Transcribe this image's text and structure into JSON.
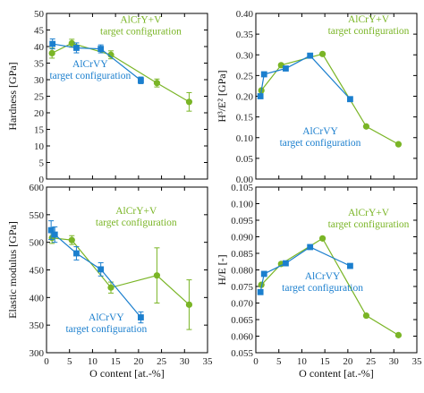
{
  "colors": {
    "alcryv": "#7ab526",
    "alcrvy": "#1b7fce",
    "axis": "#000000"
  },
  "chart_data": [
    {
      "type": "scatter",
      "panel": "hardness",
      "xlabel": "",
      "ylabel": "Hardness [GPa]",
      "xlim": [
        0,
        35
      ],
      "ylim": [
        0,
        50
      ],
      "xticks": [
        "0",
        "5",
        "10",
        "15",
        "20",
        "25",
        "30",
        "35"
      ],
      "yticks": [
        "0",
        "5",
        "10",
        "15",
        "20",
        "25",
        "30",
        "35",
        "40",
        "45",
        "50"
      ],
      "show_xtick_labels": false,
      "annotations": [
        {
          "text": "AlCrY+V",
          "series": 0,
          "line": 0,
          "x": 20.5,
          "y": 47.2
        },
        {
          "text": "target configuration",
          "series": 0,
          "line": 1,
          "x": 20.5,
          "y": 43.7
        },
        {
          "text": "AlCrVY",
          "series": 1,
          "line": 0,
          "x": 9.5,
          "y": 33.8
        },
        {
          "text": "target configuration",
          "series": 1,
          "line": 1,
          "x": 9.5,
          "y": 30.3
        }
      ],
      "series": [
        {
          "color": "alcryv",
          "marker": "circle",
          "x": [
            1.2,
            5.5,
            14.0,
            24.0,
            31.0
          ],
          "y": [
            38.0,
            41.0,
            37.5,
            29.0,
            23.3
          ],
          "err": [
            1.5,
            1.2,
            1.2,
            1.2,
            2.8
          ]
        },
        {
          "color": "alcrvy",
          "marker": "square",
          "x": [
            1.3,
            6.5,
            11.8,
            20.5
          ],
          "y": [
            40.8,
            39.6,
            39.3,
            29.8
          ],
          "err": [
            1.5,
            1.5,
            1.2,
            1.0
          ]
        }
      ]
    },
    {
      "type": "scatter",
      "panel": "h3e2",
      "xlabel": "",
      "ylabel": "H³/E² [GPa]",
      "xlim": [
        0,
        35
      ],
      "ylim": [
        0,
        0.4
      ],
      "xticks": [
        "0",
        "5",
        "10",
        "15",
        "20",
        "25",
        "30",
        "35"
      ],
      "yticks": [
        "0.00",
        "0.05",
        "0.10",
        "0.15",
        "0.20",
        "0.25",
        "0.30",
        "0.35",
        "0.40"
      ],
      "show_xtick_labels": false,
      "annotations": [
        {
          "text": "AlCrY+V",
          "series": 0,
          "line": 0,
          "x": 24.5,
          "y": 0.378
        },
        {
          "text": "target configuration",
          "series": 0,
          "line": 1,
          "x": 24.5,
          "y": 0.35
        },
        {
          "text": "AlCrVY",
          "series": 1,
          "line": 0,
          "x": 14.0,
          "y": 0.108
        },
        {
          "text": "target configuration",
          "series": 1,
          "line": 1,
          "x": 14.0,
          "y": 0.08
        }
      ],
      "series": [
        {
          "color": "alcryv",
          "marker": "circle",
          "x": [
            1.2,
            5.5,
            14.5,
            24.0,
            31.0
          ],
          "y": [
            0.214,
            0.275,
            0.302,
            0.127,
            0.084
          ],
          "err": [
            0,
            0,
            0,
            0,
            0
          ]
        },
        {
          "color": "alcrvy",
          "marker": "square",
          "x": [
            1.0,
            1.8,
            6.5,
            11.8,
            20.5
          ],
          "y": [
            0.2,
            0.253,
            0.267,
            0.298,
            0.193
          ],
          "err": [
            0,
            0,
            0,
            0,
            0
          ]
        }
      ]
    },
    {
      "type": "scatter",
      "panel": "modulus",
      "xlabel": "O content [at.-%]",
      "ylabel": "Elastic modulus [GPa]",
      "xlim": [
        0,
        35
      ],
      "ylim": [
        300,
        600
      ],
      "xticks": [
        "0",
        "5",
        "10",
        "15",
        "20",
        "25",
        "30",
        "35"
      ],
      "yticks": [
        "300",
        "350",
        "400",
        "450",
        "500",
        "550",
        "600"
      ],
      "show_xtick_labels": true,
      "annotations": [
        {
          "text": "AlCrY+V",
          "series": 0,
          "line": 0,
          "x": 19.5,
          "y": 551
        },
        {
          "text": "target configuration",
          "series": 0,
          "line": 1,
          "x": 19.5,
          "y": 530
        },
        {
          "text": "AlCrVY",
          "series": 1,
          "line": 0,
          "x": 13.0,
          "y": 358
        },
        {
          "text": "target configuration",
          "series": 1,
          "line": 1,
          "x": 13.0,
          "y": 337
        }
      ],
      "series": [
        {
          "color": "alcryv",
          "marker": "circle",
          "x": [
            1.2,
            5.5,
            14.0,
            24.0,
            31.0
          ],
          "y": [
            508,
            504,
            418,
            440,
            387
          ],
          "err": [
            10,
            8,
            10,
            50,
            45
          ]
        },
        {
          "color": "alcrvy",
          "marker": "square",
          "x": [
            1.0,
            1.8,
            6.5,
            11.8,
            20.5
          ],
          "y": [
            522,
            514,
            480,
            451,
            364
          ],
          "err": [
            17,
            14,
            12,
            12,
            10
          ]
        }
      ]
    },
    {
      "type": "scatter",
      "panel": "he",
      "xlabel": "O content [at.-%]",
      "ylabel": "H/E [-]",
      "xlim": [
        0,
        35
      ],
      "ylim": [
        0.055,
        0.105
      ],
      "xticks": [
        "0",
        "5",
        "10",
        "15",
        "20",
        "25",
        "30",
        "35"
      ],
      "yticks": [
        "0.055",
        "0.060",
        "0.065",
        "0.070",
        "0.075",
        "0.080",
        "0.085",
        "0.090",
        "0.095",
        "0.100",
        "0.105"
      ],
      "show_xtick_labels": true,
      "annotations": [
        {
          "text": "AlCrY+V",
          "series": 0,
          "line": 0,
          "x": 24.5,
          "y": 0.0963
        },
        {
          "text": "target configuration",
          "series": 0,
          "line": 1,
          "x": 24.5,
          "y": 0.0928
        },
        {
          "text": "AlCrVY",
          "series": 1,
          "line": 0,
          "x": 14.5,
          "y": 0.0772
        },
        {
          "text": "target configuration",
          "series": 1,
          "line": 1,
          "x": 14.5,
          "y": 0.0737
        }
      ],
      "series": [
        {
          "color": "alcryv",
          "marker": "circle",
          "x": [
            1.2,
            5.5,
            14.5,
            24.0,
            31.0
          ],
          "y": [
            0.0755,
            0.0818,
            0.0895,
            0.0662,
            0.0603
          ],
          "err": [
            0,
            0,
            0,
            0,
            0
          ]
        },
        {
          "color": "alcrvy",
          "marker": "square",
          "x": [
            1.0,
            1.8,
            6.5,
            11.8,
            20.5
          ],
          "y": [
            0.0733,
            0.0788,
            0.082,
            0.0869,
            0.0812
          ],
          "err": [
            0,
            0,
            0,
            0,
            0
          ]
        }
      ]
    }
  ]
}
